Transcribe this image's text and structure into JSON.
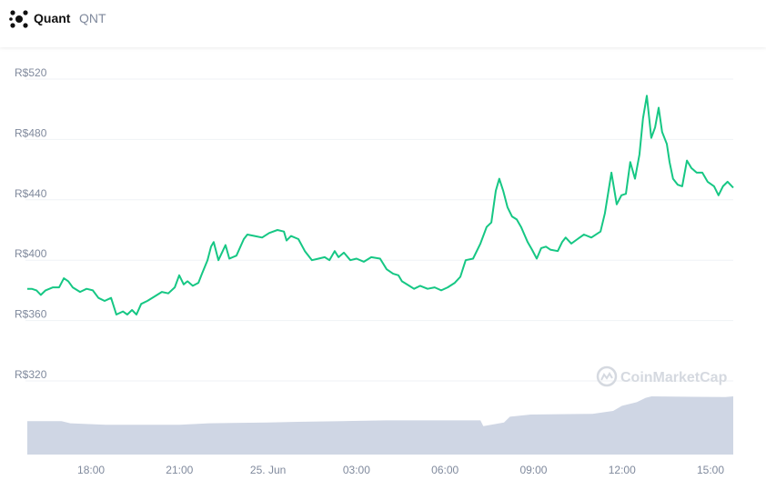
{
  "header": {
    "name": "Quant",
    "symbol": "QNT"
  },
  "chart_data": {
    "type": "line",
    "watermark": "CoinMarketCap",
    "xlim": [
      15.84,
      39.77
    ],
    "xticks": [
      {
        "value": 18,
        "label": "18:00"
      },
      {
        "value": 21,
        "label": "21:00"
      },
      {
        "value": 24,
        "label": "25. Jun"
      },
      {
        "value": 27,
        "label": "03:00"
      },
      {
        "value": 30,
        "label": "06:00"
      },
      {
        "value": 33,
        "label": "09:00"
      },
      {
        "value": 36,
        "label": "12:00"
      },
      {
        "value": 39,
        "label": "15:00"
      }
    ],
    "ylim": [
      320,
      520
    ],
    "yticks": [
      {
        "value": 320,
        "label": "R$320"
      },
      {
        "value": 360,
        "label": "R$360"
      },
      {
        "value": 400,
        "label": "R$400"
      },
      {
        "value": 440,
        "label": "R$440"
      },
      {
        "value": 480,
        "label": "R$480"
      },
      {
        "value": 520,
        "label": "R$520"
      }
    ],
    "y2lim": [
      0,
      100
    ],
    "grid": true,
    "series": [
      {
        "name": "Price",
        "color": "#16c784",
        "x": [
          15.84,
          15.99,
          16.15,
          16.3,
          16.46,
          16.71,
          16.92,
          17.08,
          17.23,
          17.38,
          17.63,
          17.85,
          18.06,
          18.25,
          18.46,
          18.68,
          18.86,
          19.08,
          19.23,
          19.39,
          19.54,
          19.7,
          19.91,
          20.16,
          20.4,
          20.62,
          20.84,
          20.99,
          21.14,
          21.27,
          21.45,
          21.64,
          21.76,
          21.95,
          22.07,
          22.16,
          22.32,
          22.56,
          22.69,
          22.93,
          23.18,
          23.3,
          23.55,
          23.8,
          24.04,
          24.32,
          24.54,
          24.63,
          24.78,
          25.03,
          25.25,
          25.49,
          25.71,
          25.92,
          26.08,
          26.26,
          26.39,
          26.57,
          26.79,
          27.0,
          27.25,
          27.5,
          27.8,
          28.02,
          28.24,
          28.42,
          28.54,
          28.79,
          28.95,
          29.16,
          29.41,
          29.65,
          29.87,
          30.09,
          30.33,
          30.52,
          30.7,
          30.95,
          31.2,
          31.41,
          31.57,
          31.72,
          31.84,
          31.97,
          32.12,
          32.27,
          32.43,
          32.58,
          32.8,
          32.95,
          33.11,
          33.26,
          33.42,
          33.57,
          33.82,
          33.97,
          34.09,
          34.28,
          34.49,
          34.71,
          34.96,
          35.27,
          35.42,
          35.64,
          35.82,
          35.98,
          36.13,
          36.28,
          36.44,
          36.59,
          36.71,
          36.84,
          36.99,
          37.12,
          37.24,
          37.36,
          37.52,
          37.61,
          37.73,
          37.89,
          38.04,
          38.2,
          38.35,
          38.53,
          38.72,
          38.9,
          39.12,
          39.27,
          39.42,
          39.58,
          39.77
        ],
        "values": [
          381,
          381,
          380,
          377,
          380,
          382,
          382,
          388,
          386,
          382,
          379,
          381,
          380,
          375,
          373,
          375,
          364,
          366,
          364,
          367,
          364,
          371,
          373,
          376,
          379,
          378,
          382,
          390,
          384,
          386,
          383,
          385,
          391,
          400,
          409,
          412,
          400,
          410,
          401,
          403,
          414,
          417,
          416,
          415,
          418,
          420,
          419,
          413,
          416,
          414,
          406,
          400,
          401,
          402,
          400,
          406,
          402,
          405,
          400,
          401,
          399,
          402,
          401,
          394,
          391,
          390,
          386,
          383,
          381,
          383,
          381,
          382,
          380,
          382,
          385,
          389,
          400,
          401,
          411,
          422,
          425,
          446,
          454,
          446,
          435,
          429,
          427,
          422,
          412,
          407,
          401,
          408,
          409,
          407,
          406,
          412,
          415,
          411,
          414,
          417,
          415,
          419,
          431,
          458,
          437,
          443,
          444,
          465,
          454,
          470,
          494,
          509,
          481,
          488,
          501,
          485,
          477,
          465,
          454,
          450,
          449,
          466,
          461,
          458,
          458,
          452,
          449,
          443,
          449,
          452,
          448
        ]
      },
      {
        "name": "Volume",
        "color": "#cfd6e4",
        "axis": "y2",
        "x": [
          15.84,
          17.0,
          17.3,
          18.5,
          21.0,
          22.0,
          24.0,
          25.0,
          26.5,
          28.0,
          31.2,
          31.3,
          32.0,
          32.2,
          32.9,
          35.0,
          35.7,
          36.0,
          36.5,
          36.8,
          37.0,
          39.5,
          39.77
        ],
        "values": [
          46,
          46,
          43,
          41,
          41,
          43,
          44,
          45,
          46,
          47,
          47,
          39,
          44,
          52,
          55,
          56,
          60,
          67,
          72,
          78,
          80,
          79,
          80
        ]
      }
    ]
  }
}
